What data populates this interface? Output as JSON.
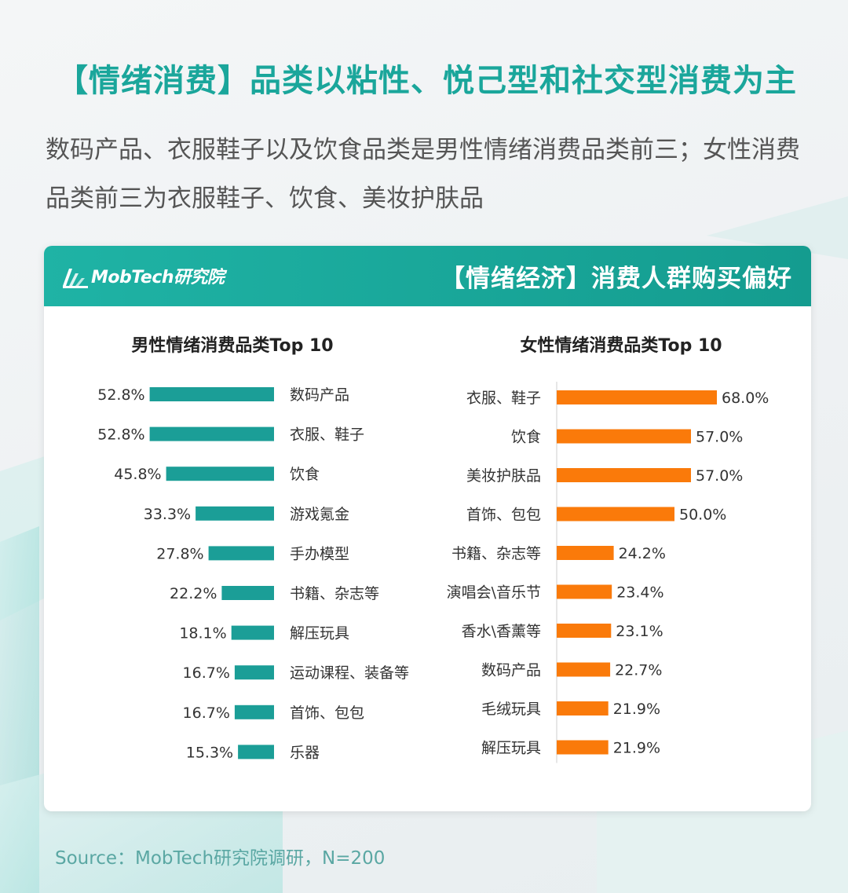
{
  "header": {
    "title": "【情绪消费】品类以粘性、悦己型和社交型消费为主",
    "subtitle": "数码产品、衣服鞋子以及饮食品类是男性情绪消费品类前三；女性消费品类前三为衣服鞋子、饮食、美妆护肤品"
  },
  "card": {
    "brand": "MobTech研究院",
    "brand_icon": "mobtech-logo-icon",
    "title": "【情绪经济】消费人群购买偏好"
  },
  "source": "Source：MobTech研究院调研，N=200",
  "colors": {
    "accent": "#1aa69b",
    "male_bar": "#1b9e97",
    "female_bar": "#fa7a0a",
    "header_bg": "#17a89b"
  },
  "chart_data": [
    {
      "type": "bar",
      "orientation": "horizontal",
      "title": "男性情绪消费品类Top 10",
      "categories": [
        "数码产品",
        "衣服、鞋子",
        "饮食",
        "游戏氪金",
        "手办模型",
        "书籍、杂志等",
        "解压玩具",
        "运动课程、装备等",
        "首饰、包包",
        "乐器"
      ],
      "values": [
        52.8,
        52.8,
        45.8,
        33.3,
        27.8,
        22.2,
        18.1,
        16.7,
        16.7,
        15.3
      ],
      "unit": "%",
      "data_labels": [
        "52.8%",
        "52.8%",
        "45.8%",
        "33.3%",
        "27.8%",
        "22.2%",
        "18.1%",
        "16.7%",
        "16.7%",
        "15.3%"
      ]
    },
    {
      "type": "bar",
      "orientation": "horizontal",
      "title": "女性情绪消费品类Top 10",
      "categories": [
        "衣服、鞋子",
        "饮食",
        "美妆护肤品",
        "首饰、包包",
        "书籍、杂志等",
        "演唱会\\音乐节",
        "香水\\香薰等",
        "数码产品",
        "毛绒玩具",
        "解压玩具"
      ],
      "values": [
        68.0,
        57.0,
        57.0,
        50.0,
        24.2,
        23.4,
        23.1,
        22.7,
        21.9,
        21.9
      ],
      "unit": "%",
      "data_labels": [
        "68.0%",
        "57.0%",
        "57.0%",
        "50.0%",
        "24.2%",
        "23.4%",
        "23.1%",
        "22.7%",
        "21.9%",
        "21.9%"
      ]
    }
  ]
}
